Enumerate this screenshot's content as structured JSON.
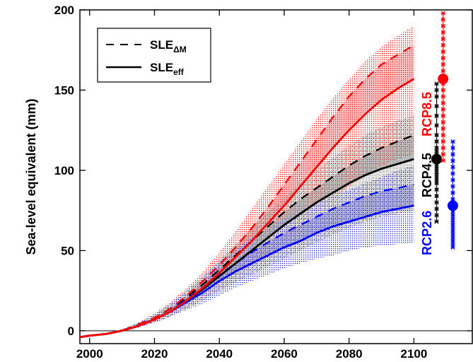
{
  "chart_data": {
    "type": "line",
    "title": "",
    "xlabel": "",
    "ylabel": "Sea-level equivalent (mm)",
    "xlim": [
      1997,
      2118
    ],
    "ylim": [
      -8,
      200
    ],
    "xticks": [
      2000,
      2020,
      2040,
      2060,
      2080,
      2100
    ],
    "yticks": [
      0,
      50,
      100,
      150,
      200
    ],
    "zero_line": true,
    "grid": false,
    "legend": {
      "placement": "top-left",
      "entries": [
        {
          "style": "dashed",
          "label": "SLE",
          "sub": "ΔM"
        },
        {
          "style": "solid",
          "label": "SLE",
          "sub": "eff"
        }
      ]
    },
    "x": [
      1997,
      2000,
      2005,
      2010,
      2015,
      2020,
      2025,
      2030,
      2035,
      2040,
      2045,
      2050,
      2055,
      2060,
      2065,
      2070,
      2075,
      2080,
      2085,
      2090,
      2095,
      2100
    ],
    "series": [
      {
        "name": "RCP2.6",
        "color": "#0000ff",
        "sle_eff": [
          -4,
          -3,
          -2,
          0,
          3,
          7,
          12,
          18,
          24,
          31,
          37,
          42,
          47,
          52,
          56,
          61,
          65,
          68,
          71,
          74,
          76,
          78
        ],
        "sle_dm": [
          -4,
          -3,
          -2,
          0,
          4,
          8,
          14,
          20,
          27,
          35,
          42,
          49,
          55,
          61,
          66,
          71,
          76,
          80,
          84,
          87,
          89,
          91
        ],
        "band_low": [
          -4,
          -3,
          -2,
          0,
          2,
          5,
          9,
          13,
          17,
          22,
          27,
          31,
          35,
          39,
          42,
          45,
          47,
          50,
          52,
          53,
          54,
          55
        ],
        "band_high": [
          -4,
          -3,
          -2,
          1,
          5,
          10,
          17,
          25,
          34,
          43,
          51,
          58,
          64,
          70,
          75,
          80,
          84,
          88,
          92,
          96,
          100,
          103
        ],
        "range_label": "RCP2.6",
        "range_x": 2112,
        "range_mean": 78,
        "range_samples": [
          52,
          54,
          56,
          58,
          60,
          62,
          64,
          66,
          68,
          70,
          72,
          74,
          76,
          78,
          82,
          86,
          90,
          94,
          98,
          102,
          106,
          110,
          114,
          118
        ]
      },
      {
        "name": "RCP4.5",
        "color": "#000000",
        "sle_eff": [
          -4,
          -3,
          -2,
          0,
          3,
          7,
          12,
          19,
          26,
          34,
          42,
          50,
          58,
          66,
          73,
          80,
          86,
          92,
          97,
          101,
          104,
          107
        ],
        "sle_dm": [
          -4,
          -3,
          -2,
          0,
          4,
          8,
          14,
          21,
          29,
          38,
          47,
          56,
          65,
          74,
          82,
          89,
          96,
          103,
          109,
          114,
          118,
          122
        ],
        "band_low": [
          -4,
          -3,
          -2,
          0,
          2,
          5,
          9,
          14,
          19,
          25,
          30,
          35,
          40,
          45,
          50,
          55,
          60,
          64,
          68,
          71,
          73,
          75
        ],
        "band_high": [
          -4,
          -3,
          -2,
          1,
          5,
          10,
          17,
          25,
          34,
          44,
          54,
          64,
          74,
          83,
          92,
          100,
          108,
          115,
          122,
          127,
          131,
          134
        ],
        "range_label": "RCP4.5",
        "range_x": 2107,
        "range_mean": 107,
        "range_samples": [
          68,
          72,
          76,
          80,
          84,
          88,
          92,
          94,
          96,
          98,
          100,
          102,
          104,
          106,
          108,
          110,
          112,
          114,
          118,
          122,
          128,
          134,
          140,
          146,
          150,
          154
        ]
      },
      {
        "name": "RCP8.5",
        "color": "#ff0000",
        "sle_eff": [
          -4,
          -3,
          -2,
          0,
          3,
          7,
          12,
          19,
          27,
          36,
          46,
          56,
          67,
          78,
          90,
          102,
          114,
          125,
          135,
          144,
          151,
          157
        ],
        "sle_dm": [
          -4,
          -3,
          -2,
          0,
          4,
          8,
          14,
          22,
          31,
          41,
          52,
          64,
          77,
          91,
          105,
          119,
          133,
          146,
          157,
          166,
          172,
          178
        ],
        "band_low": [
          -4,
          -3,
          -2,
          0,
          2,
          5,
          9,
          14,
          20,
          26,
          33,
          40,
          48,
          56,
          65,
          74,
          82,
          90,
          97,
          103,
          107,
          110
        ],
        "band_high": [
          -4,
          -3,
          -2,
          1,
          5,
          11,
          18,
          27,
          37,
          49,
          62,
          76,
          90,
          104,
          118,
          132,
          145,
          157,
          168,
          177,
          184,
          190
        ],
        "range_label": "RCP8.5",
        "range_x": 2109,
        "range_mean": 157,
        "range_samples": [
          106,
          110,
          114,
          118,
          122,
          126,
          130,
          134,
          138,
          142,
          146,
          150,
          154,
          158,
          162,
          166,
          170,
          174,
          178,
          182,
          186,
          190,
          194,
          198
        ]
      }
    ]
  }
}
